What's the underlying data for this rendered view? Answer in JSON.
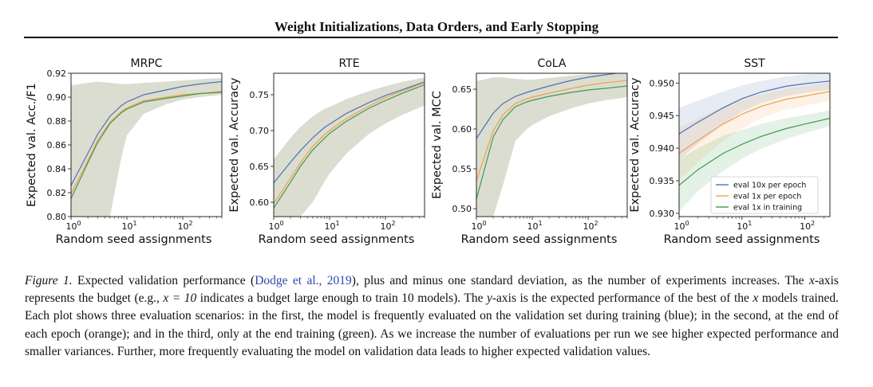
{
  "header": {
    "title": "Weight Initializations, Data Orders, and Early Stopping"
  },
  "colors": {
    "blue": "#4c72b0",
    "orange": "#f0a04a",
    "green": "#3f9a4e",
    "band": "#b9bca4"
  },
  "chart_data": [
    {
      "type": "line",
      "title": "MRPC",
      "xlabel": "Random seed assignments",
      "ylabel": "Expected val. Acc./F1",
      "xscale": "log",
      "xlim": [
        1,
        500
      ],
      "ylim": [
        0.8,
        0.92
      ],
      "yticks": [
        0.8,
        0.82,
        0.84,
        0.86,
        0.88,
        0.9,
        0.92
      ],
      "xticks": [
        {
          "v": 1,
          "b": "10",
          "e": "0"
        },
        {
          "v": 10,
          "b": "10",
          "e": "1"
        },
        {
          "v": 100,
          "b": "10",
          "e": "2"
        }
      ],
      "x": [
        1,
        2,
        3,
        5,
        8,
        10,
        20,
        50,
        100,
        200,
        500
      ],
      "series": [
        {
          "name": "eval 10x per epoch",
          "color": "blue",
          "values": [
            0.826,
            0.853,
            0.869,
            0.884,
            0.893,
            0.896,
            0.902,
            0.906,
            0.909,
            0.911,
            0.913
          ]
        },
        {
          "name": "eval 1x per epoch",
          "color": "orange",
          "values": [
            0.819,
            0.847,
            0.864,
            0.879,
            0.888,
            0.891,
            0.897,
            0.9,
            0.902,
            0.903,
            0.905
          ]
        },
        {
          "name": "eval 1x in training",
          "color": "green",
          "values": [
            0.815,
            0.845,
            0.862,
            0.878,
            0.887,
            0.89,
            0.896,
            0.899,
            0.901,
            0.903,
            0.904
          ]
        }
      ],
      "band": {
        "x": [
          1,
          2,
          3,
          5,
          8,
          10,
          20,
          50,
          100,
          200,
          500
        ],
        "upper": [
          0.91,
          0.912,
          0.913,
          0.912,
          0.911,
          0.911,
          0.912,
          0.913,
          0.914,
          0.915,
          0.916
        ],
        "lower": [
          0.8,
          0.8,
          0.8,
          0.8,
          0.85,
          0.868,
          0.886,
          0.894,
          0.898,
          0.9,
          0.902
        ]
      }
    },
    {
      "type": "line",
      "title": "RTE",
      "xlabel": "Random seed assignments",
      "ylabel": "Expected val. Accuracy",
      "xscale": "log",
      "xlim": [
        1,
        500
      ],
      "ylim": [
        0.58,
        0.78
      ],
      "yticks": [
        0.6,
        0.65,
        0.7,
        0.75
      ],
      "xticks": [
        {
          "v": 1,
          "b": "10",
          "e": "0"
        },
        {
          "v": 10,
          "b": "10",
          "e": "1"
        },
        {
          "v": 100,
          "b": "10",
          "e": "2"
        }
      ],
      "x": [
        1,
        2,
        3,
        5,
        8,
        10,
        20,
        50,
        100,
        200,
        500
      ],
      "series": [
        {
          "name": "eval 10x per epoch",
          "color": "blue",
          "values": [
            0.627,
            0.656,
            0.672,
            0.69,
            0.704,
            0.709,
            0.724,
            0.739,
            0.749,
            0.757,
            0.768
          ]
        },
        {
          "name": "eval 1x per epoch",
          "color": "orange",
          "values": [
            0.598,
            0.634,
            0.655,
            0.678,
            0.694,
            0.7,
            0.717,
            0.734,
            0.746,
            0.755,
            0.767
          ]
        },
        {
          "name": "eval 1x in training",
          "color": "green",
          "values": [
            0.592,
            0.628,
            0.65,
            0.673,
            0.689,
            0.696,
            0.713,
            0.731,
            0.742,
            0.752,
            0.764
          ]
        }
      ],
      "band": {
        "x": [
          1,
          2,
          3,
          5,
          8,
          10,
          20,
          50,
          100,
          200,
          500
        ],
        "upper": [
          0.66,
          0.69,
          0.705,
          0.72,
          0.73,
          0.733,
          0.744,
          0.755,
          0.762,
          0.768,
          0.774
        ],
        "lower": [
          0.58,
          0.58,
          0.58,
          0.6,
          0.628,
          0.64,
          0.668,
          0.695,
          0.71,
          0.722,
          0.735
        ]
      }
    },
    {
      "type": "line",
      "title": "CoLA",
      "xlabel": "Random seed assignments",
      "ylabel": "Expected val. MCC",
      "xscale": "log",
      "xlim": [
        1,
        500
      ],
      "ylim": [
        0.49,
        0.67
      ],
      "yticks": [
        0.5,
        0.55,
        0.6,
        0.65
      ],
      "xticks": [
        {
          "v": 1,
          "b": "10",
          "e": "0"
        },
        {
          "v": 10,
          "b": "10",
          "e": "1"
        },
        {
          "v": 100,
          "b": "10",
          "e": "2"
        }
      ],
      "x": [
        1,
        2,
        3,
        5,
        8,
        10,
        20,
        50,
        100,
        200,
        500
      ],
      "series": [
        {
          "name": "eval 10x per epoch",
          "color": "blue",
          "values": [
            0.588,
            0.62,
            0.632,
            0.641,
            0.646,
            0.648,
            0.654,
            0.661,
            0.665,
            0.668,
            0.672
          ]
        },
        {
          "name": "eval 1x per epoch",
          "color": "orange",
          "values": [
            0.535,
            0.598,
            0.618,
            0.632,
            0.638,
            0.64,
            0.645,
            0.651,
            0.655,
            0.658,
            0.661
          ]
        },
        {
          "name": "eval 1x in training",
          "color": "green",
          "values": [
            0.512,
            0.59,
            0.612,
            0.628,
            0.634,
            0.636,
            0.641,
            0.646,
            0.649,
            0.651,
            0.654
          ]
        }
      ],
      "band": {
        "x": [
          1,
          2,
          3,
          5,
          8,
          10,
          20,
          50,
          100,
          200,
          500
        ],
        "upper": [
          0.66,
          0.665,
          0.665,
          0.663,
          0.662,
          0.662,
          0.664,
          0.667,
          0.669,
          0.671,
          0.674
        ],
        "lower": [
          0.49,
          0.49,
          0.53,
          0.585,
          0.6,
          0.605,
          0.616,
          0.626,
          0.632,
          0.636,
          0.64
        ]
      }
    },
    {
      "type": "line",
      "title": "SST",
      "xlabel": "Random seed assignments",
      "ylabel": "Expected val. Accuracy",
      "xscale": "log",
      "xlim": [
        1,
        250
      ],
      "ylim": [
        0.9295,
        0.9515
      ],
      "yticks": [
        0.93,
        0.935,
        0.94,
        0.945,
        0.95
      ],
      "xticks": [
        {
          "v": 1,
          "b": "10",
          "e": "0"
        },
        {
          "v": 10,
          "b": "10",
          "e": "1"
        },
        {
          "v": 100,
          "b": "10",
          "e": "2"
        }
      ],
      "x": [
        1,
        2,
        5,
        10,
        20,
        50,
        100,
        250
      ],
      "series": [
        {
          "name": "eval 10x per epoch",
          "color": "blue",
          "values": [
            0.9422,
            0.944,
            0.9462,
            0.9476,
            0.9486,
            0.9495,
            0.9499,
            0.9503
          ]
        },
        {
          "name": "eval 1x per epoch",
          "color": "orange",
          "values": [
            0.9392,
            0.9412,
            0.9437,
            0.9452,
            0.9464,
            0.9475,
            0.948,
            0.9487
          ]
        },
        {
          "name": "eval 1x in training",
          "color": "green",
          "values": [
            0.9343,
            0.9367,
            0.9392,
            0.9406,
            0.9418,
            0.943,
            0.9437,
            0.9446
          ]
        }
      ],
      "bands": [
        {
          "color": "blue",
          "upper": [
            0.9462,
            0.9473,
            0.9487,
            0.9496,
            0.9503,
            0.951,
            0.9513,
            0.9516
          ],
          "lower": [
            0.9382,
            0.9407,
            0.9437,
            0.9456,
            0.9469,
            0.948,
            0.9485,
            0.949
          ]
        },
        {
          "color": "orange",
          "upper": [
            0.9432,
            0.9446,
            0.9463,
            0.9474,
            0.9482,
            0.9491,
            0.9495,
            0.9501
          ],
          "lower": [
            0.9352,
            0.9378,
            0.9411,
            0.943,
            0.9446,
            0.9459,
            0.9465,
            0.9473
          ]
        },
        {
          "color": "green",
          "upper": [
            0.9383,
            0.94,
            0.9419,
            0.9428,
            0.9437,
            0.9446,
            0.9451,
            0.9458
          ],
          "lower": [
            0.9303,
            0.9334,
            0.9365,
            0.9384,
            0.9399,
            0.9414,
            0.9423,
            0.9434
          ]
        }
      ],
      "legend": {
        "position": "lower-right",
        "entries": [
          "eval 10x per epoch",
          "eval 1x per epoch",
          "eval 1x in training"
        ]
      }
    }
  ],
  "caption": {
    "fig_label": "Figure 1.",
    "p1": " Expected validation performance (",
    "cite": "Dodge et al., 2019",
    "p2": "), plus and minus one standard deviation, as the number of experiments increases. The ",
    "x_var": "x",
    "p3": "-axis represents the budget (e.g., ",
    "x_eq": "x = 10",
    "p4": " indicates a budget large enough to train 10 models). The ",
    "y_var": "y",
    "p5": "-axis is the expected performance of the best of the ",
    "x_var2": "x",
    "p6": " models trained. Each plot shows three evaluation scenarios: in the first, the model is frequently evaluated on the validation set during training (blue); in the second, at the end of each epoch (orange); and in the third, only at the end training (green). As we increase the number of evaluations per run we see higher expected performance and smaller variances. Further, more frequently evaluating the model on validation data leads to higher expected validation values."
  }
}
